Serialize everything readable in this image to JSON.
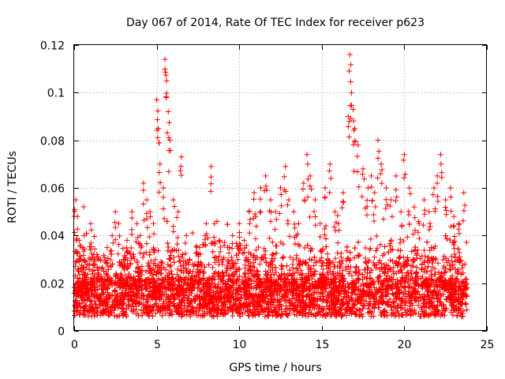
{
  "chart_data": {
    "type": "scatter",
    "title": "Day 067 of 2014, Rate Of TEC Index for receiver p623",
    "xlabel": "GPS time / hours",
    "ylabel": "ROTI / TECUs",
    "xlim": [
      0,
      25
    ],
    "ylim": [
      0,
      0.12
    ],
    "xticks": [
      0,
      5,
      10,
      15,
      20,
      25
    ],
    "xtick_labels": [
      "0",
      "5",
      "10",
      "15",
      "20",
      "25"
    ],
    "yticks": [
      0,
      0.02,
      0.04,
      0.06,
      0.08,
      0.1,
      0.12
    ],
    "ytick_labels": [
      "0",
      "0.02",
      "0.04",
      "0.06",
      "0.08",
      "0.1",
      "0.12"
    ],
    "grid": true,
    "marker": "+",
    "series": [
      {
        "name": "ROTI",
        "color": "#ff0000",
        "note": "dense scatter of ROTI samples; baseline ~0.005-0.03 TECU/s with spikes; representative points below",
        "x": [
          0.1,
          0.2,
          0.3,
          0.4,
          0.5,
          0.6,
          0.8,
          1.0,
          1.2,
          1.5,
          1.8,
          2.0,
          2.3,
          2.5,
          2.7,
          3.0,
          3.2,
          3.5,
          3.8,
          4.0,
          4.2,
          4.4,
          4.6,
          4.8,
          5.0,
          5.1,
          5.2,
          5.4,
          5.5,
          5.6,
          5.7,
          5.8,
          6.0,
          6.3,
          6.5,
          6.8,
          7.0,
          7.3,
          7.6,
          8.0,
          8.3,
          8.5,
          8.8,
          9.0,
          9.3,
          9.6,
          10.0,
          10.3,
          10.6,
          10.9,
          11.0,
          11.3,
          11.6,
          11.9,
          12.2,
          12.5,
          12.8,
          13.0,
          13.3,
          13.6,
          13.9,
          14.1,
          14.3,
          14.6,
          14.9,
          15.2,
          15.5,
          15.8,
          16.0,
          16.3,
          16.6,
          16.7,
          16.8,
          16.9,
          17.0,
          17.2,
          17.5,
          17.8,
          18.0,
          18.2,
          18.4,
          18.6,
          18.9,
          19.2,
          19.5,
          19.8,
          20.0,
          20.3,
          20.6,
          20.9,
          21.2,
          21.5,
          21.8,
          22.0,
          22.2,
          22.5,
          22.8,
          23.0,
          23.3,
          23.6
        ],
        "y": [
          0.055,
          0.048,
          0.038,
          0.03,
          0.022,
          0.04,
          0.028,
          0.045,
          0.032,
          0.03,
          0.025,
          0.035,
          0.04,
          0.05,
          0.045,
          0.03,
          0.038,
          0.05,
          0.045,
          0.04,
          0.062,
          0.055,
          0.05,
          0.045,
          0.097,
          0.085,
          0.07,
          0.06,
          0.114,
          0.105,
          0.092,
          0.08,
          0.055,
          0.05,
          0.073,
          0.04,
          0.03,
          0.028,
          0.035,
          0.045,
          0.069,
          0.045,
          0.038,
          0.03,
          0.035,
          0.04,
          0.045,
          0.038,
          0.05,
          0.058,
          0.048,
          0.06,
          0.065,
          0.055,
          0.05,
          0.06,
          0.069,
          0.055,
          0.05,
          0.045,
          0.062,
          0.074,
          0.065,
          0.055,
          0.045,
          0.06,
          0.07,
          0.05,
          0.045,
          0.058,
          0.09,
          0.116,
          0.1,
          0.093,
          0.085,
          0.078,
          0.068,
          0.06,
          0.065,
          0.058,
          0.08,
          0.07,
          0.06,
          0.055,
          0.065,
          0.05,
          0.074,
          0.06,
          0.052,
          0.045,
          0.055,
          0.05,
          0.06,
          0.065,
          0.074,
          0.055,
          0.06,
          0.048,
          0.045,
          0.058
        ]
      }
    ]
  }
}
